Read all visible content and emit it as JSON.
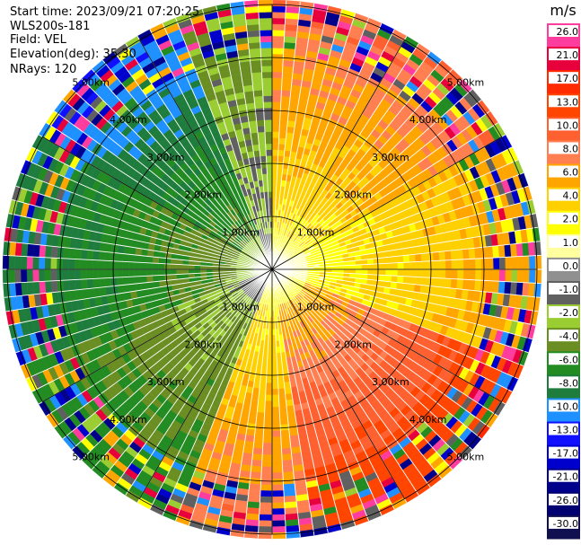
{
  "header": {
    "start_time": "Start time: 2023/09/21 07:20:25",
    "instrument": "WLS200s-181",
    "field": "Field: VEL",
    "elevation": "Elevation(deg): 35.30",
    "nrays": "NRays: 120"
  },
  "colorbar": {
    "units": "m/s",
    "labels": [
      "26.0",
      "21.0",
      "17.0",
      "13.0",
      "10.0",
      "8.0",
      "6.0",
      "4.0",
      "2.0",
      "1.0",
      "0.0",
      "-1.0",
      "-2.0",
      "-4.0",
      "-6.0",
      "-8.0",
      "-10.0",
      "-13.0",
      "-17.0",
      "-21.0",
      "-26.0",
      "-30.0"
    ],
    "colors": [
      "#ff3d9e",
      "#e8003c",
      "#ff2a00",
      "#ff4500",
      "#ff6030",
      "#ff7f50",
      "#ffa500",
      "#ffd000",
      "#ffff00",
      "#ffffa0",
      "#909090",
      "#606060",
      "#9acd32",
      "#6b8e23",
      "#228b22",
      "#1e7d3c",
      "#1e90ff",
      "#1010ff",
      "#0000cd",
      "#00008b",
      "#000070",
      "#101050"
    ]
  },
  "chart_data": {
    "type": "ppi",
    "field": "VEL",
    "units": "m/s",
    "nrays": 120,
    "elevation_deg": 35.3,
    "range_ring_labels": [
      "1.00km",
      "2.00km",
      "3.00km",
      "4.00km",
      "5.00km"
    ],
    "sectors": [
      {
        "azimuth_range_deg": [
          0,
          60
        ],
        "dominant_velocity_ms": 8.0
      },
      {
        "azimuth_range_deg": [
          60,
          110
        ],
        "dominant_velocity_ms": 6.0
      },
      {
        "azimuth_range_deg": [
          110,
          170
        ],
        "dominant_velocity_ms": 13.0
      },
      {
        "azimuth_range_deg": [
          170,
          200
        ],
        "dominant_velocity_ms": 8.0
      },
      {
        "azimuth_range_deg": [
          200,
          250
        ],
        "dominant_velocity_ms": -4.0
      },
      {
        "azimuth_range_deg": [
          250,
          300
        ],
        "dominant_velocity_ms": -6.0
      },
      {
        "azimuth_range_deg": [
          300,
          340
        ],
        "dominant_velocity_ms": -8.0
      },
      {
        "azimuth_range_deg": [
          340,
          360
        ],
        "dominant_velocity_ms": -2.0
      }
    ]
  }
}
